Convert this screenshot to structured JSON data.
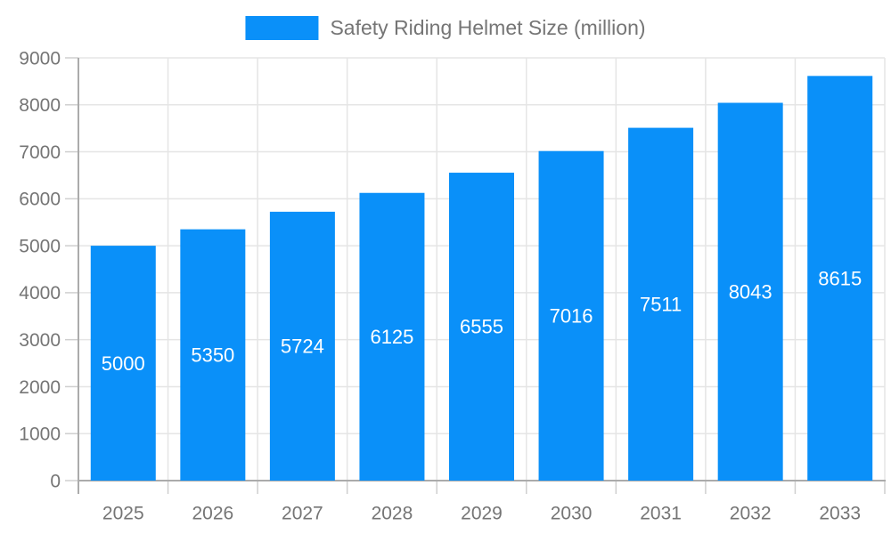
{
  "chart_data": {
    "type": "bar",
    "title": "Safety Riding Helmet Size (million)",
    "categories": [
      "2025",
      "2026",
      "2027",
      "2028",
      "2029",
      "2030",
      "2031",
      "2032",
      "2033"
    ],
    "values": [
      5000,
      5350,
      5724,
      6125,
      6555,
      7016,
      7511,
      8043,
      8615
    ],
    "xlabel": "",
    "ylabel": "",
    "ylim": [
      0,
      9000
    ],
    "ytick_step": 1000,
    "ytick_labels": [
      "0",
      "1000",
      "2000",
      "3000",
      "4000",
      "5000",
      "6000",
      "7000",
      "8000",
      "9000"
    ],
    "grid": true,
    "value_labels_shown": true,
    "legend": {
      "position": "top-center",
      "entries": [
        "Safety Riding Helmet Size (million)"
      ]
    },
    "colors": {
      "bar": "#0a90f9",
      "value_label": "#ffffff",
      "axis_text": "#757575",
      "grid_line": "#e5e5e5",
      "tick_line": "#cfcfcf",
      "axis_line": "#ababab",
      "background": "#ffffff"
    }
  }
}
